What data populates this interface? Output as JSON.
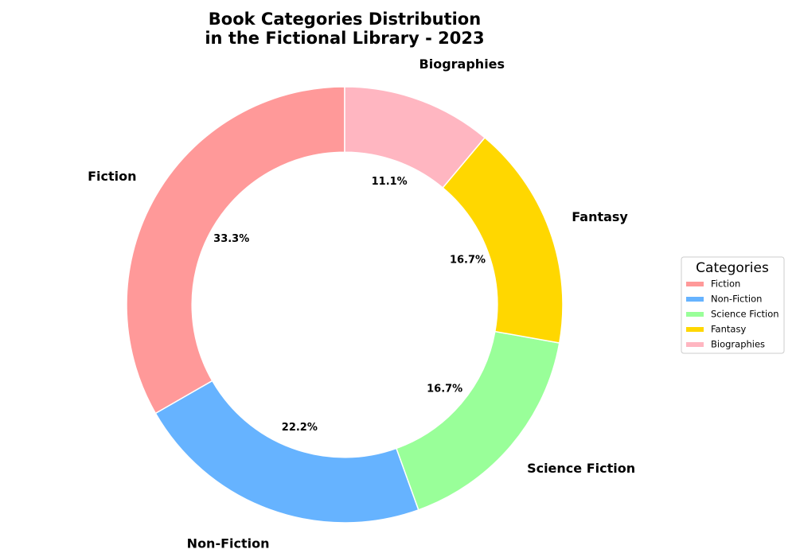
{
  "chart_data": {
    "type": "pie",
    "title": "Book Categories Distribution\nin the Fictional Library - 2023",
    "categories": [
      "Fiction",
      "Non-Fiction",
      "Science Fiction",
      "Fantasy",
      "Biographies"
    ],
    "values": [
      33.3,
      22.2,
      16.7,
      16.7,
      11.1
    ],
    "value_labels": [
      "33.3%",
      "22.2%",
      "16.7%",
      "16.7%",
      "11.1%"
    ],
    "colors": [
      "#ff9999",
      "#66b3ff",
      "#99ff99",
      "#ffd700",
      "#ffb6c1"
    ],
    "donut": true,
    "start_angle_deg": 90,
    "direction": "counterclockwise",
    "legend": {
      "title": "Categories",
      "placement": "center-right"
    }
  }
}
